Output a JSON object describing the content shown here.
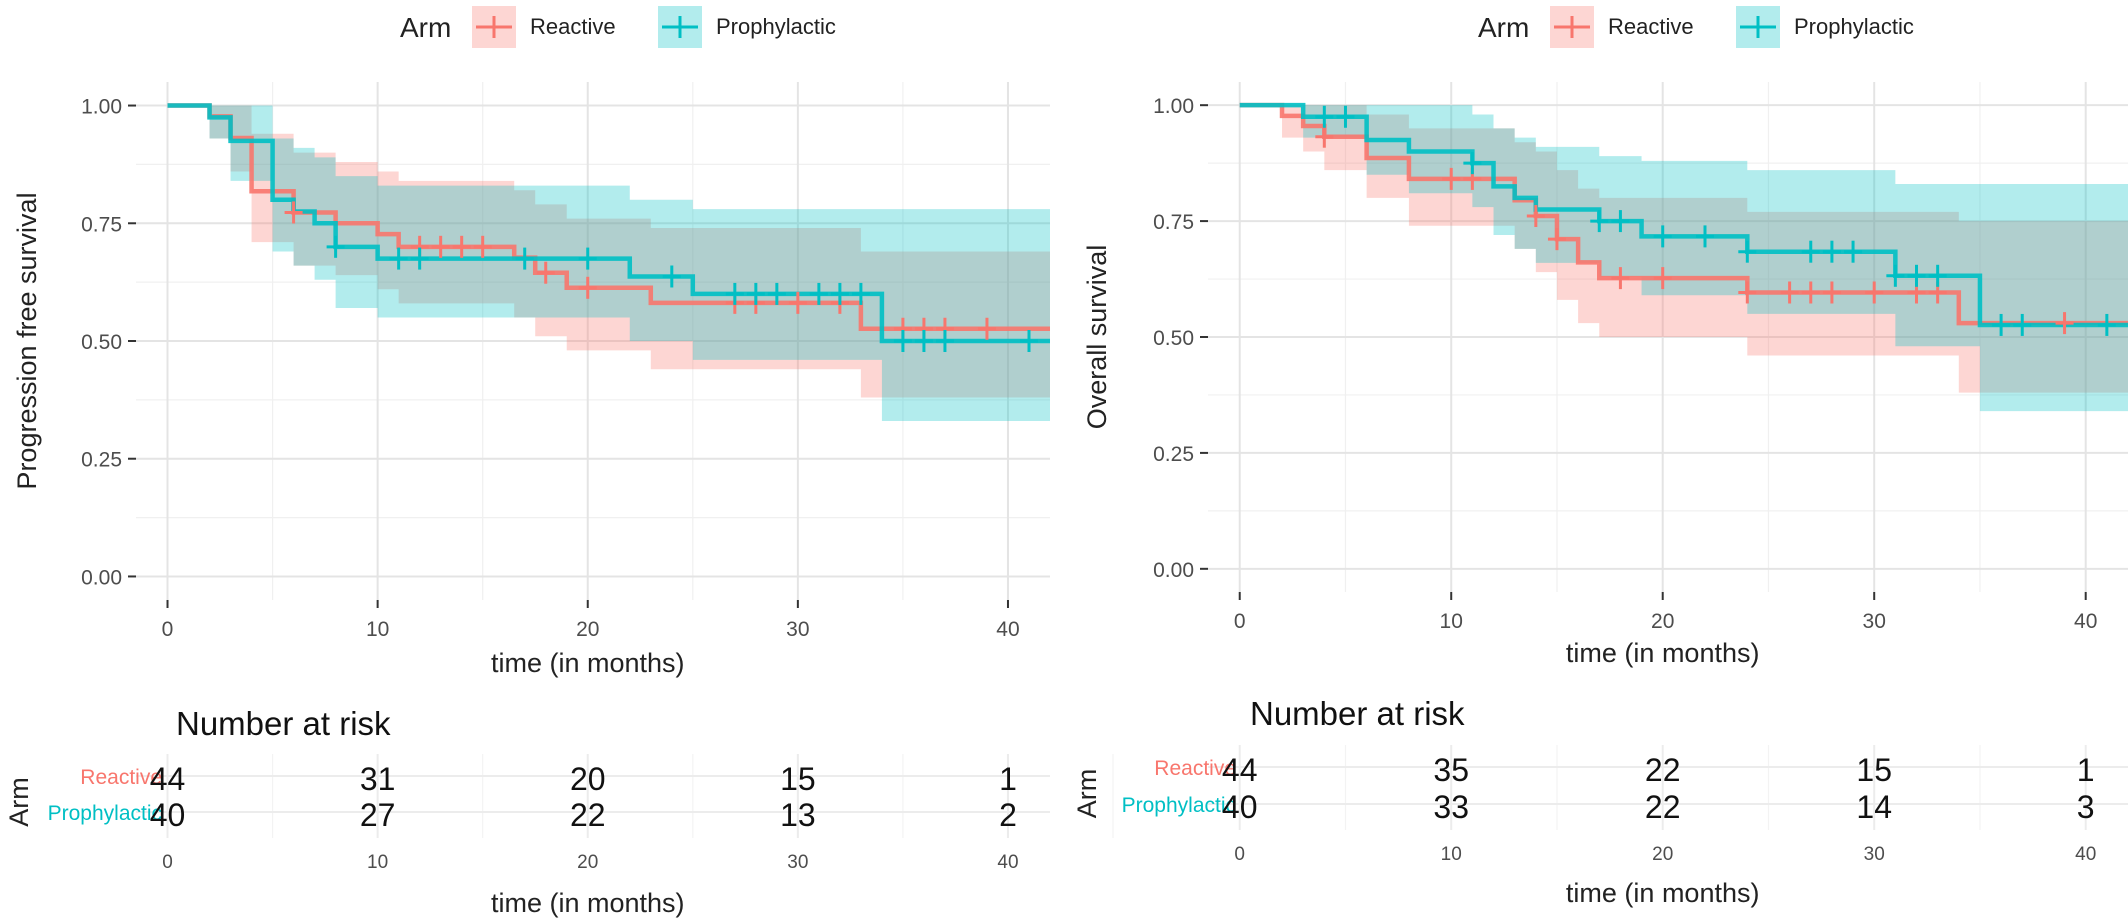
{
  "legend": {
    "title": "Arm",
    "items": [
      {
        "label": "Reactive",
        "color": "#F8766D"
      },
      {
        "label": "Prophylactic",
        "color": "#00BFC4"
      }
    ]
  },
  "chart_data": [
    {
      "type": "line",
      "subtype": "kaplan-meier",
      "title": "",
      "xlabel": "time (in months)",
      "ylabel": "Progression free survival",
      "xlim": [
        -1.5,
        42
      ],
      "ylim": [
        -0.05,
        1.05
      ],
      "xticks": [
        0,
        10,
        20,
        30,
        40
      ],
      "yticks": [
        0.0,
        0.25,
        0.5,
        0.75,
        1.0
      ],
      "ytick_labels": [
        "0.00",
        "0.25",
        "0.50",
        "0.75",
        "1.00"
      ],
      "grid": true,
      "legend_position": "top",
      "series": [
        {
          "name": "Reactive",
          "color": "#F8766D",
          "steps": [
            [
              0,
              1.0
            ],
            [
              2,
              0.977
            ],
            [
              3,
              0.931
            ],
            [
              4,
              0.818
            ],
            [
              6,
              0.773
            ],
            [
              8,
              0.75
            ],
            [
              10,
              0.727
            ],
            [
              11,
              0.7
            ],
            [
              16.5,
              0.677
            ],
            [
              17.5,
              0.645
            ],
            [
              19,
              0.613
            ],
            [
              23,
              0.581
            ],
            [
              33,
              0.526
            ],
            [
              42,
              0.526
            ]
          ],
          "censors": [
            [
              6,
              0.773
            ],
            [
              12,
              0.7
            ],
            [
              13,
              0.7
            ],
            [
              14,
              0.7
            ],
            [
              15,
              0.7
            ],
            [
              18,
              0.645
            ],
            [
              20,
              0.613
            ],
            [
              27,
              0.581
            ],
            [
              28,
              0.581
            ],
            [
              30,
              0.581
            ],
            [
              32,
              0.581
            ],
            [
              35,
              0.526
            ],
            [
              36,
              0.526
            ],
            [
              37,
              0.526
            ],
            [
              39,
              0.526
            ]
          ],
          "ci": [
            [
              0,
              1.0,
              1.0
            ],
            [
              2,
              0.93,
              1.0
            ],
            [
              3,
              0.86,
              1.0
            ],
            [
              4,
              0.71,
              0.94
            ],
            [
              6,
              0.66,
              0.9
            ],
            [
              8,
              0.64,
              0.88
            ],
            [
              10,
              0.61,
              0.86
            ],
            [
              11,
              0.58,
              0.84
            ],
            [
              16.5,
              0.55,
              0.82
            ],
            [
              17.5,
              0.51,
              0.79
            ],
            [
              19,
              0.48,
              0.76
            ],
            [
              23,
              0.44,
              0.74
            ],
            [
              33,
              0.38,
              0.69
            ],
            [
              34,
              0.38,
              0.69
            ],
            [
              42,
              0.38,
              0.69
            ]
          ]
        },
        {
          "name": "Prophylactic",
          "color": "#00BFC4",
          "steps": [
            [
              0,
              1.0
            ],
            [
              2,
              0.975
            ],
            [
              3,
              0.925
            ],
            [
              5,
              0.8
            ],
            [
              6,
              0.775
            ],
            [
              7,
              0.75
            ],
            [
              8,
              0.7
            ],
            [
              10,
              0.675
            ],
            [
              22,
              0.637
            ],
            [
              25,
              0.6
            ],
            [
              34,
              0.5
            ],
            [
              42,
              0.5
            ]
          ],
          "censors": [
            [
              8,
              0.7
            ],
            [
              11,
              0.675
            ],
            [
              12,
              0.675
            ],
            [
              17,
              0.675
            ],
            [
              20,
              0.675
            ],
            [
              24,
              0.637
            ],
            [
              27,
              0.6
            ],
            [
              28,
              0.6
            ],
            [
              29,
              0.6
            ],
            [
              31,
              0.6
            ],
            [
              32,
              0.6
            ],
            [
              33,
              0.6
            ],
            [
              35,
              0.5
            ],
            [
              36,
              0.5
            ],
            [
              37,
              0.5
            ],
            [
              41,
              0.5
            ]
          ],
          "ci": [
            [
              0,
              1.0,
              1.0
            ],
            [
              2,
              0.93,
              1.0
            ],
            [
              3,
              0.84,
              1.0
            ],
            [
              5,
              0.69,
              0.93
            ],
            [
              6,
              0.66,
              0.91
            ],
            [
              7,
              0.63,
              0.89
            ],
            [
              8,
              0.57,
              0.85
            ],
            [
              10,
              0.55,
              0.83
            ],
            [
              22,
              0.5,
              0.8
            ],
            [
              25,
              0.46,
              0.78
            ],
            [
              34,
              0.33,
              0.78
            ],
            [
              42,
              0.33,
              0.78
            ]
          ]
        }
      ]
    },
    {
      "type": "line",
      "subtype": "kaplan-meier",
      "title": "",
      "xlabel": "time (in months)",
      "ylabel": "Overall survival",
      "xlim": [
        -1.5,
        42
      ],
      "ylim": [
        -0.05,
        1.05
      ],
      "xticks": [
        0,
        10,
        20,
        30,
        40
      ],
      "yticks": [
        0.0,
        0.25,
        0.5,
        0.75,
        1.0
      ],
      "ytick_labels": [
        "0.00",
        "0.25",
        "0.50",
        "0.75",
        "1.00"
      ],
      "grid": true,
      "legend_position": "top",
      "series": [
        {
          "name": "Reactive",
          "color": "#F8766D",
          "steps": [
            [
              0,
              1.0
            ],
            [
              2,
              0.977
            ],
            [
              3,
              0.955
            ],
            [
              4,
              0.932
            ],
            [
              6,
              0.886
            ],
            [
              8,
              0.841
            ],
            [
              13,
              0.795
            ],
            [
              14,
              0.761
            ],
            [
              15,
              0.711
            ],
            [
              16,
              0.661
            ],
            [
              17,
              0.627
            ],
            [
              24,
              0.596
            ],
            [
              34,
              0.53
            ],
            [
              42,
              0.53
            ]
          ],
          "censors": [
            [
              4,
              0.932
            ],
            [
              10,
              0.841
            ],
            [
              11,
              0.841
            ],
            [
              14,
              0.761
            ],
            [
              15,
              0.711
            ],
            [
              18,
              0.627
            ],
            [
              20,
              0.627
            ],
            [
              24,
              0.596
            ],
            [
              26,
              0.596
            ],
            [
              27,
              0.596
            ],
            [
              28,
              0.596
            ],
            [
              30,
              0.596
            ],
            [
              32,
              0.596
            ],
            [
              33,
              0.596
            ],
            [
              39,
              0.53
            ]
          ],
          "ci": [
            [
              0,
              1.0,
              1.0
            ],
            [
              2,
              0.93,
              1.0
            ],
            [
              3,
              0.9,
              1.0
            ],
            [
              4,
              0.86,
              1.0
            ],
            [
              6,
              0.8,
              0.98
            ],
            [
              8,
              0.74,
              0.95
            ],
            [
              13,
              0.69,
              0.92
            ],
            [
              14,
              0.64,
              0.9
            ],
            [
              15,
              0.58,
              0.86
            ],
            [
              16,
              0.53,
              0.82
            ],
            [
              17,
              0.5,
              0.8
            ],
            [
              24,
              0.46,
              0.77
            ],
            [
              33,
              0.46,
              0.77
            ],
            [
              34,
              0.38,
              0.75
            ],
            [
              35,
              0.38,
              0.75
            ],
            [
              42,
              0.38,
              0.75
            ]
          ]
        },
        {
          "name": "Prophylactic",
          "color": "#00BFC4",
          "steps": [
            [
              0,
              1.0
            ],
            [
              3,
              0.975
            ],
            [
              6,
              0.925
            ],
            [
              8,
              0.9
            ],
            [
              11,
              0.875
            ],
            [
              12,
              0.825
            ],
            [
              13,
              0.8
            ],
            [
              14,
              0.775
            ],
            [
              17,
              0.75
            ],
            [
              19,
              0.717
            ],
            [
              24,
              0.684
            ],
            [
              31,
              0.632
            ],
            [
              35,
              0.526
            ],
            [
              42,
              0.526
            ]
          ],
          "censors": [
            [
              4,
              0.975
            ],
            [
              5,
              0.975
            ],
            [
              11,
              0.875
            ],
            [
              17,
              0.75
            ],
            [
              18,
              0.75
            ],
            [
              20,
              0.717
            ],
            [
              22,
              0.717
            ],
            [
              24,
              0.684
            ],
            [
              27,
              0.684
            ],
            [
              28,
              0.684
            ],
            [
              29,
              0.684
            ],
            [
              31,
              0.632
            ],
            [
              32,
              0.632
            ],
            [
              33,
              0.632
            ],
            [
              36,
              0.526
            ],
            [
              37,
              0.526
            ],
            [
              41,
              0.526
            ]
          ],
          "ci": [
            [
              0,
              1.0,
              1.0
            ],
            [
              3,
              0.93,
              1.0
            ],
            [
              6,
              0.85,
              1.0
            ],
            [
              8,
              0.81,
              1.0
            ],
            [
              11,
              0.78,
              0.98
            ],
            [
              12,
              0.72,
              0.95
            ],
            [
              13,
              0.69,
              0.93
            ],
            [
              14,
              0.66,
              0.91
            ],
            [
              17,
              0.63,
              0.89
            ],
            [
              19,
              0.59,
              0.88
            ],
            [
              24,
              0.55,
              0.86
            ],
            [
              31,
              0.48,
              0.83
            ],
            [
              35,
              0.34,
              0.83
            ],
            [
              42,
              0.34,
              0.83
            ]
          ]
        }
      ]
    },
    {
      "type": "table",
      "title": "Number at risk",
      "ylabel": "Arm",
      "xlabel": "time (in months)",
      "columns": [
        0,
        10,
        20,
        30,
        40
      ],
      "rows": [
        {
          "name": "Reactive",
          "color": "#F8766D",
          "values": [
            44,
            31,
            20,
            15,
            1
          ]
        },
        {
          "name": "Prophylactic",
          "color": "#00BFC4",
          "values": [
            40,
            27,
            22,
            13,
            2
          ]
        }
      ]
    },
    {
      "type": "table",
      "title": "Number at risk",
      "ylabel": "Arm",
      "xlabel": "time (in months)",
      "columns": [
        0,
        10,
        20,
        30,
        40
      ],
      "rows": [
        {
          "name": "Reactive",
          "color": "#F8766D",
          "values": [
            44,
            35,
            22,
            15,
            1
          ]
        },
        {
          "name": "Prophylactic",
          "color": "#00BFC4",
          "values": [
            40,
            33,
            22,
            14,
            3
          ]
        }
      ]
    }
  ]
}
